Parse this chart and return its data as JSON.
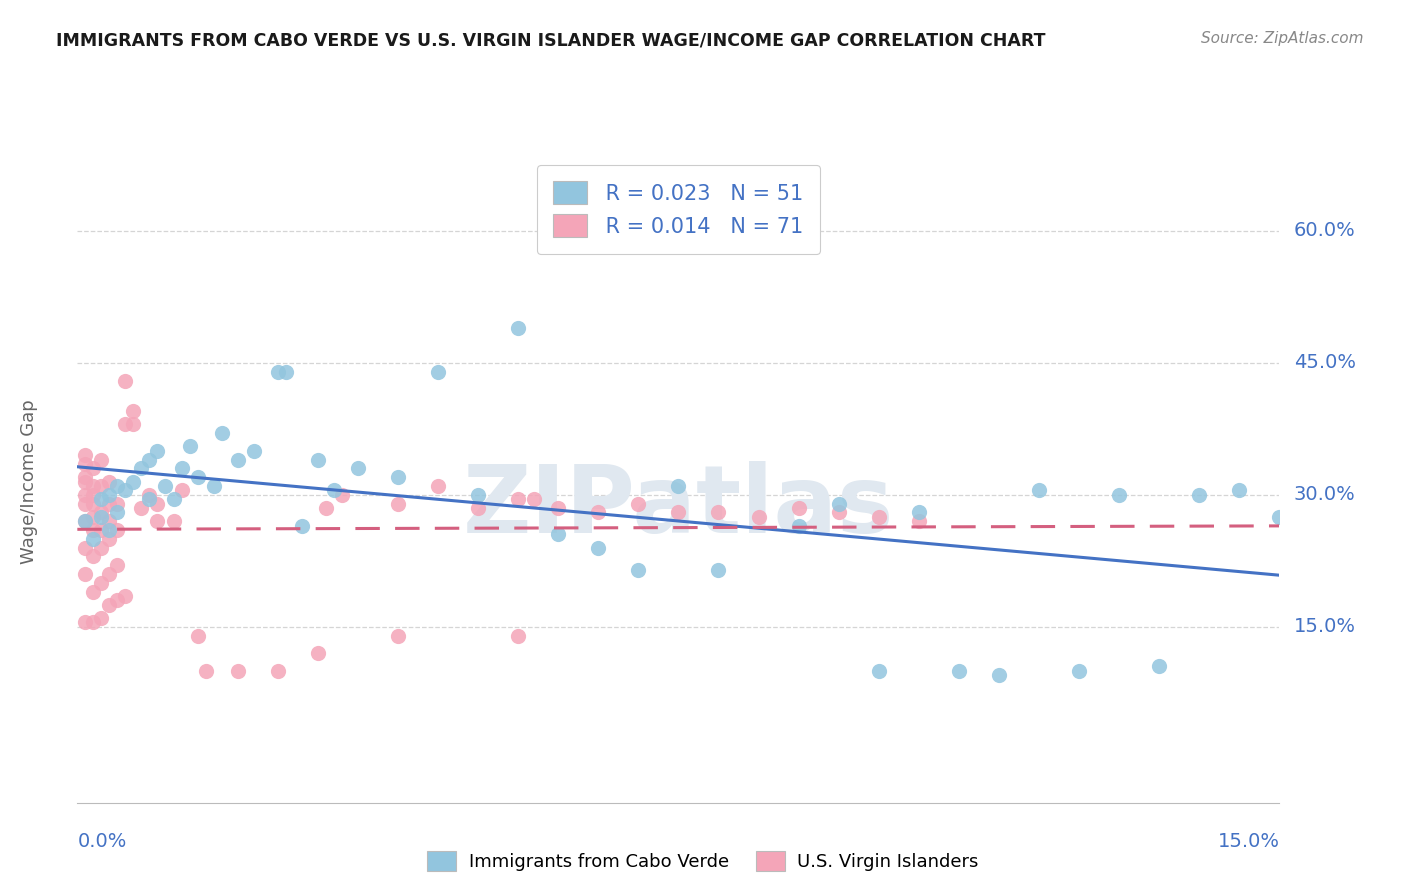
{
  "title": "IMMIGRANTS FROM CABO VERDE VS U.S. VIRGIN ISLANDER WAGE/INCOME GAP CORRELATION CHART",
  "source": "Source: ZipAtlas.com",
  "ylabel": "Wage/Income Gap",
  "xlim": [
    0.0,
    0.15
  ],
  "ylim": [
    -0.05,
    0.68
  ],
  "ytick_vals": [
    0.15,
    0.3,
    0.45,
    0.6
  ],
  "ytick_labels": [
    "15.0%",
    "30.0%",
    "45.0%",
    "60.0%"
  ],
  "legend_r1": "R = 0.023",
  "legend_n1": "N = 51",
  "legend_r2": "R = 0.014",
  "legend_n2": "N = 71",
  "color_blue": "#92c5de",
  "color_pink": "#f4a5b8",
  "color_blue_line": "#4472c4",
  "color_pink_line": "#d45f7f",
  "blue_scatter_x": [
    0.001,
    0.002,
    0.003,
    0.004,
    0.005,
    0.005,
    0.006,
    0.007,
    0.008,
    0.009,
    0.01,
    0.011,
    0.012,
    0.013,
    0.015,
    0.017,
    0.018,
    0.02,
    0.022,
    0.025,
    0.026,
    0.028,
    0.03,
    0.032,
    0.035,
    0.04,
    0.045,
    0.05,
    0.055,
    0.06,
    0.065,
    0.07,
    0.075,
    0.08,
    0.09,
    0.095,
    0.1,
    0.105,
    0.11,
    0.115,
    0.12,
    0.125,
    0.13,
    0.135,
    0.14,
    0.145,
    0.15,
    0.003,
    0.004,
    0.009,
    0.014
  ],
  "blue_scatter_y": [
    0.27,
    0.25,
    0.295,
    0.26,
    0.31,
    0.28,
    0.305,
    0.315,
    0.33,
    0.34,
    0.35,
    0.31,
    0.295,
    0.33,
    0.32,
    0.31,
    0.37,
    0.34,
    0.35,
    0.44,
    0.44,
    0.265,
    0.34,
    0.305,
    0.33,
    0.32,
    0.44,
    0.3,
    0.49,
    0.255,
    0.24,
    0.215,
    0.31,
    0.215,
    0.265,
    0.29,
    0.1,
    0.28,
    0.1,
    0.095,
    0.305,
    0.1,
    0.3,
    0.105,
    0.3,
    0.305,
    0.275,
    0.275,
    0.3,
    0.295,
    0.355
  ],
  "pink_scatter_x": [
    0.001,
    0.001,
    0.001,
    0.001,
    0.001,
    0.001,
    0.001,
    0.001,
    0.001,
    0.001,
    0.002,
    0.002,
    0.002,
    0.002,
    0.002,
    0.002,
    0.002,
    0.002,
    0.002,
    0.003,
    0.003,
    0.003,
    0.003,
    0.003,
    0.003,
    0.003,
    0.004,
    0.004,
    0.004,
    0.004,
    0.004,
    0.004,
    0.005,
    0.005,
    0.005,
    0.005,
    0.006,
    0.006,
    0.006,
    0.007,
    0.007,
    0.008,
    0.009,
    0.01,
    0.01,
    0.012,
    0.013,
    0.015,
    0.016,
    0.02,
    0.025,
    0.03,
    0.031,
    0.033,
    0.04,
    0.04,
    0.045,
    0.05,
    0.055,
    0.055,
    0.057,
    0.06,
    0.065,
    0.07,
    0.075,
    0.08,
    0.085,
    0.09,
    0.095,
    0.1,
    0.105
  ],
  "pink_scatter_y": [
    0.155,
    0.21,
    0.24,
    0.27,
    0.29,
    0.3,
    0.315,
    0.32,
    0.335,
    0.345,
    0.155,
    0.19,
    0.23,
    0.26,
    0.275,
    0.29,
    0.3,
    0.31,
    0.33,
    0.16,
    0.2,
    0.24,
    0.26,
    0.28,
    0.31,
    0.34,
    0.175,
    0.21,
    0.25,
    0.27,
    0.29,
    0.315,
    0.18,
    0.22,
    0.26,
    0.29,
    0.185,
    0.38,
    0.43,
    0.38,
    0.395,
    0.285,
    0.3,
    0.27,
    0.29,
    0.27,
    0.305,
    0.14,
    0.1,
    0.1,
    0.1,
    0.12,
    0.285,
    0.3,
    0.29,
    0.14,
    0.31,
    0.285,
    0.295,
    0.14,
    0.295,
    0.285,
    0.28,
    0.29,
    0.28,
    0.28,
    0.275,
    0.285,
    0.28,
    0.275,
    0.27
  ]
}
